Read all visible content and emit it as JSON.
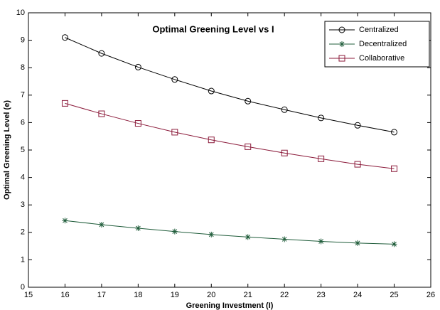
{
  "chart_data": {
    "type": "line",
    "title": "Optimal Greening Level vs I",
    "x_label": "Greening Investment (I)",
    "y_label": "Optimal Greening Level (e)",
    "x": [
      16,
      17,
      18,
      19,
      20,
      21,
      22,
      23,
      24,
      25
    ],
    "series": [
      {
        "name": "Centralized",
        "color": "#000000",
        "marker": "circle",
        "values": [
          9.1,
          8.52,
          8.02,
          7.57,
          7.15,
          6.78,
          6.47,
          6.17,
          5.9,
          5.65
        ]
      },
      {
        "name": "Decentralized",
        "color": "#1f5c3a",
        "marker": "asterisk",
        "values": [
          2.43,
          2.28,
          2.15,
          2.03,
          1.92,
          1.83,
          1.75,
          1.67,
          1.61,
          1.57
        ]
      },
      {
        "name": "Collaborative",
        "color": "#8b1a3a",
        "marker": "square",
        "values": [
          6.7,
          6.32,
          5.97,
          5.65,
          5.37,
          5.12,
          4.89,
          4.68,
          4.48,
          4.32
        ]
      }
    ],
    "xlim": [
      15,
      26
    ],
    "xticks": [
      15,
      16,
      17,
      18,
      19,
      20,
      21,
      22,
      23,
      24,
      25,
      26
    ],
    "ylim": [
      0,
      10
    ],
    "yticks": [
      0,
      1,
      2,
      3,
      4,
      5,
      6,
      7,
      8,
      9,
      10
    ],
    "grid": false,
    "legend": "upper right"
  }
}
